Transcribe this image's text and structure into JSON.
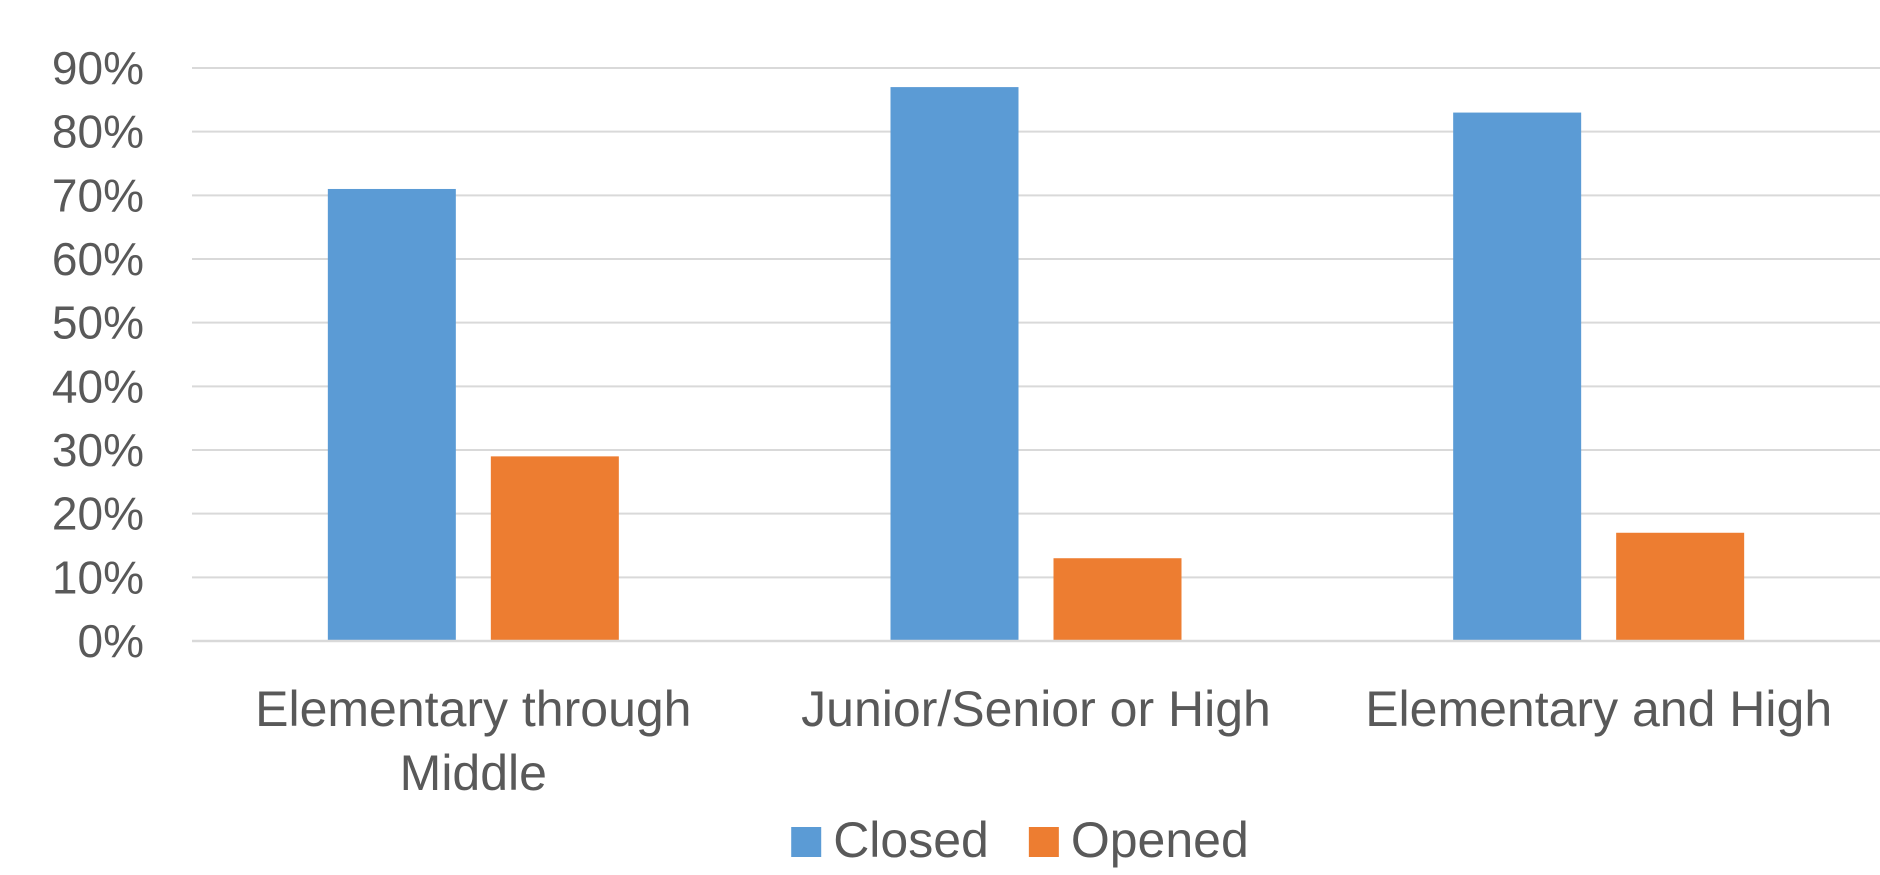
{
  "chart_data": {
    "type": "bar",
    "categories": [
      [
        "Elementary through",
        "Middle"
      ],
      [
        "Junior/Senior or High"
      ],
      [
        "Elementary and High"
      ]
    ],
    "series": [
      {
        "name": "Closed",
        "color": "#5b9bd5",
        "values": [
          71,
          87,
          83
        ]
      },
      {
        "name": "Opened",
        "color": "#ed7d31",
        "values": [
          29,
          13,
          17
        ]
      }
    ],
    "yticks": [
      "0%",
      "10%",
      "20%",
      "30%",
      "40%",
      "50%",
      "60%",
      "70%",
      "80%",
      "90%"
    ],
    "ylim": [
      0,
      90
    ],
    "grid": true,
    "legend_position": "bottom-center"
  }
}
